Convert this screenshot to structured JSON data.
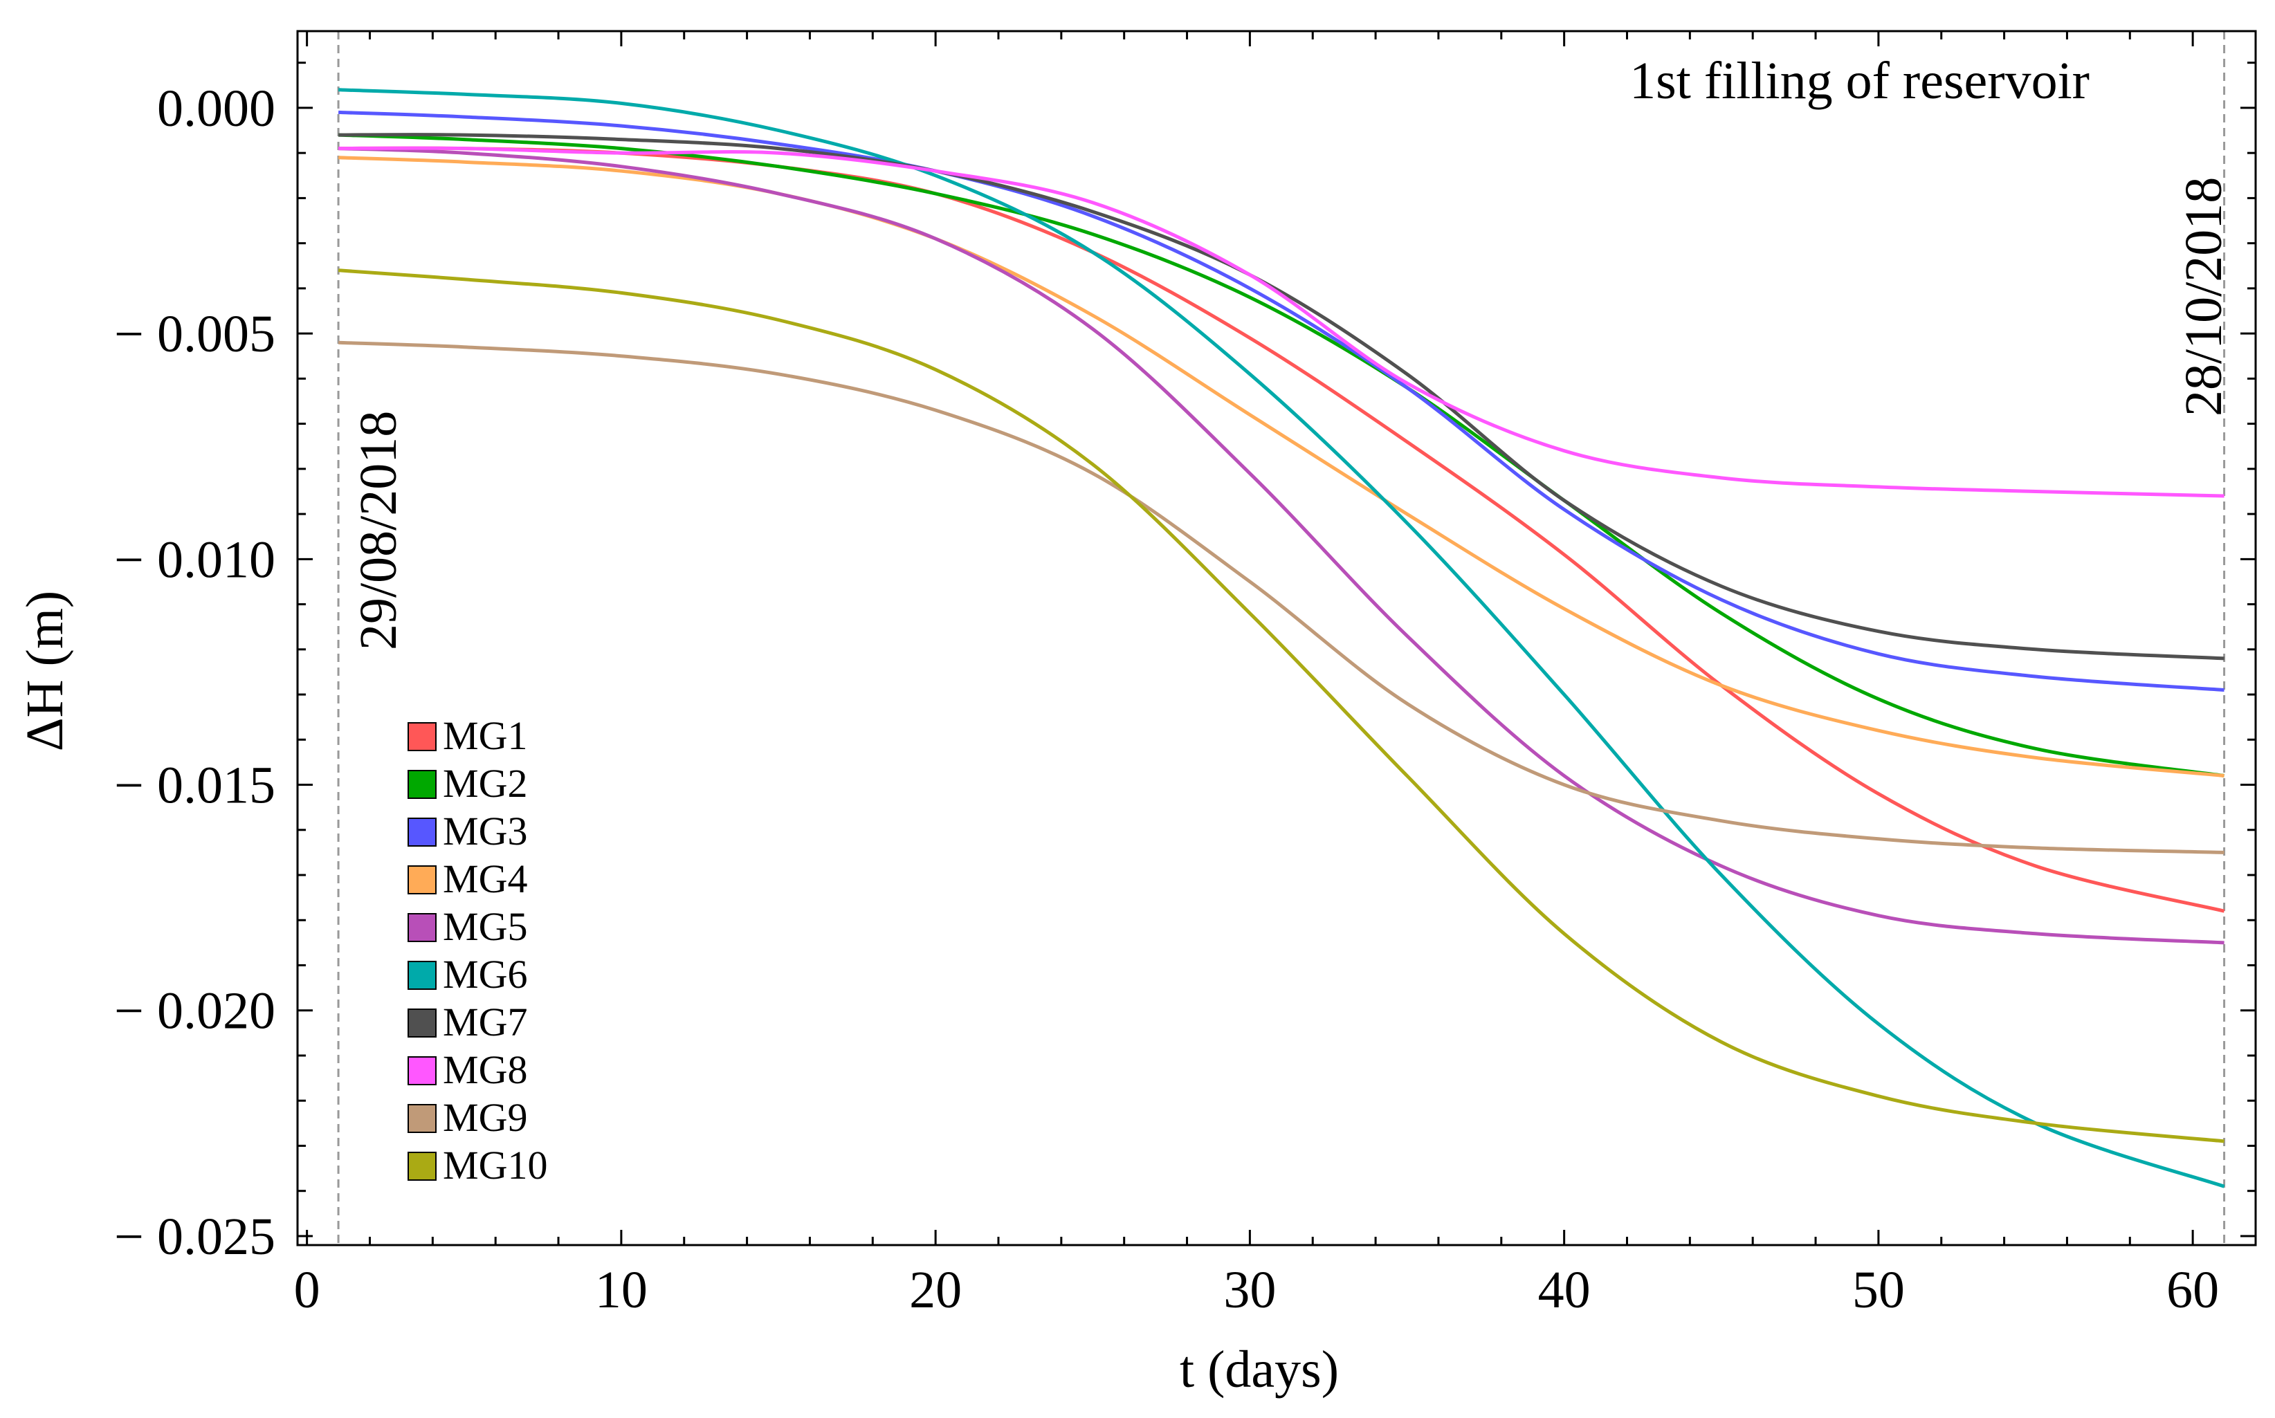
{
  "chart_data": {
    "type": "line",
    "title": "",
    "xlabel": "t (days)",
    "ylabel": "ΔH (m)",
    "xlim": [
      -0.3,
      62
    ],
    "ylim": [
      -0.0252,
      0.0017
    ],
    "x_ticks": [
      0,
      10,
      20,
      30,
      40,
      50,
      60
    ],
    "x_tick_labels": [
      "0",
      "10",
      "20",
      "30",
      "40",
      "50",
      "60"
    ],
    "y_ticks": [
      0.0,
      -0.005,
      -0.01,
      -0.015,
      -0.02,
      -0.025
    ],
    "y_tick_labels": [
      "0.000",
      "− 0.005",
      "− 0.010",
      "− 0.015",
      "− 0.020",
      "− 0.025"
    ],
    "annotations": {
      "top_right": "1st filling of reservoir",
      "start_date": "29/08/2018",
      "end_date": "28/10/2018"
    },
    "reference_lines_x": [
      1,
      61
    ],
    "legend_position": "lower-left",
    "x": [
      1,
      5,
      10,
      15,
      20,
      25,
      30,
      35,
      40,
      45,
      50,
      55,
      61
    ],
    "series": [
      {
        "name": "MG1",
        "color": "#ff5757",
        "values": [
          -0.0009,
          -0.0009,
          -0.001,
          -0.0013,
          -0.0019,
          -0.0032,
          -0.0051,
          -0.0074,
          -0.0099,
          -0.0128,
          -0.0152,
          -0.0168,
          -0.0178
        ]
      },
      {
        "name": "MG2",
        "color": "#00a800",
        "values": [
          -0.0006,
          -0.0007,
          -0.0009,
          -0.0013,
          -0.0019,
          -0.0028,
          -0.0042,
          -0.0062,
          -0.0087,
          -0.0112,
          -0.0131,
          -0.0142,
          -0.0148
        ]
      },
      {
        "name": "MG3",
        "color": "#5757ff",
        "values": [
          -0.0001,
          -0.0002,
          -0.0004,
          -0.0008,
          -0.0014,
          -0.0024,
          -0.004,
          -0.0062,
          -0.0089,
          -0.0109,
          -0.0121,
          -0.0126,
          -0.0129
        ]
      },
      {
        "name": "MG4",
        "color": "#ffab57",
        "values": [
          -0.0011,
          -0.0012,
          -0.0014,
          -0.0019,
          -0.0029,
          -0.0046,
          -0.0068,
          -0.009,
          -0.0111,
          -0.0128,
          -0.0138,
          -0.0144,
          -0.0148
        ]
      },
      {
        "name": "MG5",
        "color": "#b84fb8",
        "values": [
          -0.0009,
          -0.001,
          -0.0013,
          -0.0019,
          -0.0029,
          -0.0049,
          -0.0081,
          -0.0117,
          -0.0148,
          -0.0168,
          -0.0179,
          -0.0183,
          -0.0185
        ]
      },
      {
        "name": "MG6",
        "color": "#00aaaa",
        "values": [
          0.0004,
          0.0003,
          0.0001,
          -0.0005,
          -0.0015,
          -0.0032,
          -0.0059,
          -0.0092,
          -0.013,
          -0.017,
          -0.0203,
          -0.0225,
          -0.0239
        ]
      },
      {
        "name": "MG7",
        "color": "#505050",
        "values": [
          -0.0006,
          -0.0006,
          -0.0007,
          -0.0009,
          -0.0014,
          -0.0023,
          -0.0037,
          -0.0059,
          -0.0087,
          -0.0106,
          -0.0116,
          -0.012,
          -0.0122
        ]
      },
      {
        "name": "MG8",
        "color": "#ff57ff",
        "values": [
          -0.0009,
          -0.0009,
          -0.001,
          -0.001,
          -0.0014,
          -0.0021,
          -0.0037,
          -0.0061,
          -0.0076,
          -0.0082,
          -0.0084,
          -0.0085,
          -0.0086
        ]
      },
      {
        "name": "MG9",
        "color": "#c09a78",
        "values": [
          -0.0052,
          -0.0053,
          -0.0055,
          -0.0059,
          -0.0067,
          -0.0081,
          -0.0105,
          -0.0132,
          -0.015,
          -0.0158,
          -0.0162,
          -0.0164,
          -0.0165
        ]
      },
      {
        "name": "MG10",
        "color": "#aaaa14",
        "values": [
          -0.0036,
          -0.0038,
          -0.0041,
          -0.0047,
          -0.0058,
          -0.0079,
          -0.0112,
          -0.0148,
          -0.0183,
          -0.0207,
          -0.0219,
          -0.0225,
          -0.0229
        ]
      }
    ]
  }
}
